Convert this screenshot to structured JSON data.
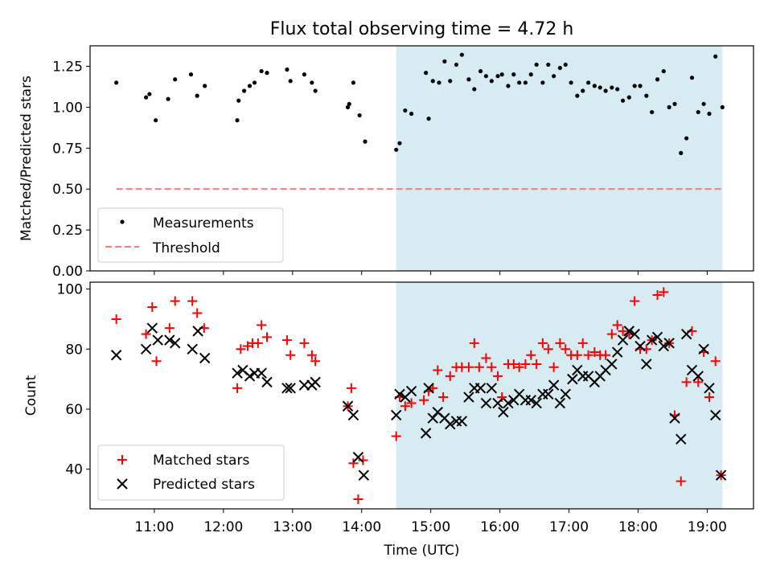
{
  "title": "Flux total observing time = 4.72 h",
  "xlabel": "Time (UTC)",
  "x_ticks": [
    "11:00",
    "12:00",
    "13:00",
    "14:00",
    "15:00",
    "16:00",
    "17:00",
    "18:00",
    "19:00"
  ],
  "x_tick_hours": [
    11,
    12,
    13,
    14,
    15,
    16,
    17,
    18,
    19
  ],
  "x_range_hours": [
    10.07,
    19.67
  ],
  "shaded_region_hours": [
    14.5,
    19.22
  ],
  "colors": {
    "shade": "#add8e6",
    "threshold": "#f08080",
    "matched": "#ff0000",
    "predicted": "#000000",
    "measurement": "#000000"
  },
  "chart_data": [
    {
      "type": "scatter",
      "panel": "top",
      "ylabel": "Matched/Predicted stars",
      "ylim": [
        0,
        1.375
      ],
      "y_ticks": [
        "0.00",
        "0.25",
        "0.50",
        "0.75",
        "1.00",
        "1.25"
      ],
      "y_tick_values": [
        0,
        0.25,
        0.5,
        0.75,
        1.0,
        1.25
      ],
      "threshold": {
        "y": 0.5,
        "x_range": [
          10.45,
          19.22
        ]
      },
      "legend": {
        "position": "lower-left",
        "entries": [
          "Measurements",
          "Threshold"
        ]
      },
      "measurements": {
        "x": [
          10.45,
          10.88,
          10.93,
          11.02,
          11.2,
          11.3,
          11.53,
          11.62,
          11.73,
          12.2,
          12.22,
          12.3,
          12.38,
          12.45,
          12.55,
          12.63,
          12.92,
          12.97,
          13.17,
          13.28,
          13.33,
          13.8,
          13.82,
          13.88,
          13.97,
          14.05,
          14.5,
          14.55,
          14.63,
          14.72,
          14.93,
          14.97,
          15.03,
          15.12,
          15.2,
          15.28,
          15.37,
          15.45,
          15.55,
          15.63,
          15.72,
          15.8,
          15.88,
          15.97,
          16.03,
          16.12,
          16.2,
          16.28,
          16.37,
          16.45,
          16.53,
          16.62,
          16.7,
          16.78,
          16.87,
          16.95,
          17.03,
          17.12,
          17.2,
          17.28,
          17.37,
          17.45,
          17.53,
          17.62,
          17.7,
          17.78,
          17.87,
          17.95,
          18.03,
          18.12,
          18.2,
          18.28,
          18.37,
          18.45,
          18.53,
          18.62,
          18.7,
          18.78,
          18.87,
          18.95,
          19.03,
          19.12,
          19.22
        ],
        "y": [
          1.15,
          1.06,
          1.08,
          0.92,
          1.05,
          1.17,
          1.2,
          1.07,
          1.13,
          0.92,
          1.04,
          1.1,
          1.13,
          1.15,
          1.22,
          1.21,
          1.23,
          1.16,
          1.2,
          1.15,
          1.1,
          1.0,
          1.02,
          1.15,
          0.95,
          0.79,
          0.74,
          0.78,
          0.98,
          0.96,
          1.21,
          0.93,
          1.16,
          1.15,
          1.28,
          1.16,
          1.26,
          1.32,
          1.17,
          1.11,
          1.22,
          1.19,
          1.16,
          1.19,
          1.2,
          1.13,
          1.2,
          1.15,
          1.15,
          1.2,
          1.26,
          1.15,
          1.26,
          1.19,
          1.24,
          1.26,
          1.15,
          1.07,
          1.1,
          1.15,
          1.13,
          1.12,
          1.1,
          1.12,
          1.11,
          1.04,
          1.06,
          1.13,
          1.13,
          1.07,
          0.97,
          1.17,
          1.22,
          1.0,
          1.02,
          0.72,
          0.81,
          1.18,
          0.97,
          1.02,
          0.96,
          1.31,
          1.0
        ]
      }
    },
    {
      "type": "scatter",
      "panel": "bottom",
      "ylabel": "Count",
      "ylim": [
        26.8,
        102.3
      ],
      "y_ticks": [
        "40",
        "60",
        "80",
        "100"
      ],
      "y_tick_values": [
        40,
        60,
        80,
        100
      ],
      "legend": {
        "position": "lower-left",
        "entries": [
          "Matched stars",
          "Predicted stars"
        ]
      },
      "series": [
        {
          "name": "Matched stars",
          "marker": "plus",
          "x": [
            10.45,
            10.88,
            10.97,
            11.03,
            11.22,
            11.3,
            11.55,
            11.62,
            11.72,
            12.2,
            12.25,
            12.35,
            12.42,
            12.5,
            12.55,
            12.63,
            12.92,
            12.97,
            13.17,
            13.28,
            13.33,
            13.8,
            13.85,
            13.88,
            13.95,
            14.02,
            14.5,
            14.55,
            14.63,
            14.72,
            14.9,
            14.97,
            15.03,
            15.1,
            15.18,
            15.28,
            15.37,
            15.45,
            15.55,
            15.63,
            15.7,
            15.8,
            15.88,
            15.97,
            16.03,
            16.12,
            16.2,
            16.28,
            16.37,
            16.45,
            16.53,
            16.62,
            16.7,
            16.78,
            16.87,
            16.95,
            17.03,
            17.12,
            17.2,
            17.28,
            17.37,
            17.45,
            17.53,
            17.62,
            17.7,
            17.78,
            17.87,
            17.95,
            18.03,
            18.12,
            18.2,
            18.28,
            18.37,
            18.45,
            18.53,
            18.62,
            18.7,
            18.78,
            18.87,
            18.95,
            19.03,
            19.12,
            19.2
          ],
          "y": [
            90,
            85,
            94,
            76,
            87,
            96,
            96,
            92,
            87,
            67,
            80,
            81,
            82,
            82,
            88,
            84,
            83,
            78,
            82,
            78,
            76,
            61,
            67,
            42,
            30,
            43,
            51,
            64,
            61,
            62,
            63,
            66,
            67,
            73,
            64,
            71,
            74,
            74,
            74,
            82,
            74,
            77,
            74,
            71,
            64,
            75,
            75,
            74,
            75,
            78,
            75,
            82,
            80,
            74,
            82,
            80,
            78,
            78,
            82,
            78,
            79,
            78,
            78,
            85,
            88,
            86,
            85,
            96,
            80,
            80,
            83,
            98,
            99,
            82,
            58,
            36,
            69,
            86,
            69,
            79,
            64,
            76,
            38
          ]
        },
        {
          "name": "Predicted stars",
          "marker": "x",
          "x": [
            10.45,
            10.88,
            10.97,
            11.05,
            11.22,
            11.3,
            11.55,
            11.63,
            11.73,
            12.2,
            12.28,
            12.38,
            12.45,
            12.55,
            12.63,
            12.92,
            12.97,
            13.17,
            13.28,
            13.33,
            13.8,
            13.88,
            13.95,
            14.03,
            14.5,
            14.55,
            14.63,
            14.72,
            14.93,
            14.97,
            15.03,
            15.1,
            15.2,
            15.28,
            15.37,
            15.45,
            15.55,
            15.63,
            15.72,
            15.8,
            15.88,
            15.97,
            16.05,
            16.12,
            16.2,
            16.28,
            16.37,
            16.45,
            16.53,
            16.62,
            16.7,
            16.78,
            16.87,
            16.95,
            17.05,
            17.12,
            17.2,
            17.28,
            17.37,
            17.45,
            17.53,
            17.62,
            17.7,
            17.78,
            17.87,
            17.95,
            18.03,
            18.12,
            18.2,
            18.28,
            18.37,
            18.45,
            18.53,
            18.62,
            18.7,
            18.78,
            18.87,
            18.95,
            19.03,
            19.12,
            19.2
          ],
          "y": [
            78,
            80,
            87,
            83,
            83,
            82,
            80,
            86,
            77,
            72,
            73,
            71,
            72,
            72,
            69,
            67,
            67,
            68,
            68,
            69,
            61,
            58,
            44,
            38,
            58,
            65,
            64,
            66,
            52,
            67,
            57,
            59,
            57,
            55,
            56,
            56,
            64,
            67,
            67,
            62,
            67,
            62,
            59,
            62,
            63,
            65,
            63,
            63,
            62,
            65,
            65,
            68,
            62,
            65,
            70,
            73,
            71,
            71,
            69,
            71,
            73,
            75,
            79,
            83,
            86,
            85,
            81,
            75,
            83,
            84,
            81,
            82,
            57,
            50,
            85,
            73,
            71,
            80,
            67,
            58,
            38
          ]
        }
      ]
    }
  ]
}
